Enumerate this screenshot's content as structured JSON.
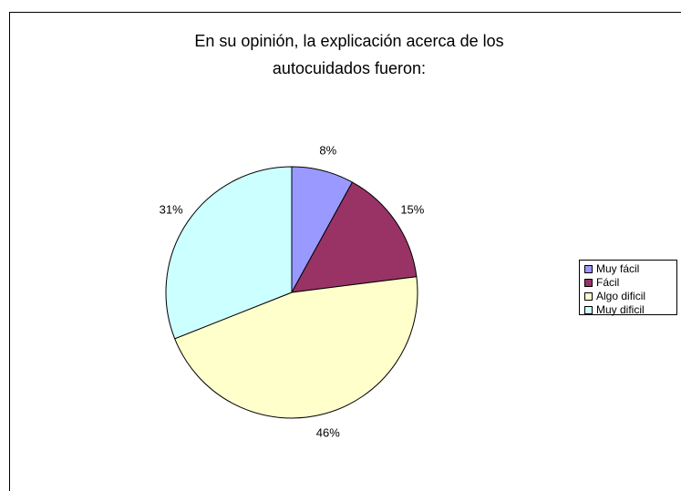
{
  "chart_data": {
    "type": "pie",
    "title": "En su opinión, la explicación acerca de los\nautocuidados fueron:",
    "categories": [
      "Muy fácil",
      "Fácil",
      "Algo dificil",
      "Muy dificil"
    ],
    "values": [
      8,
      15,
      46,
      31
    ],
    "value_labels": [
      "8%",
      "15%",
      "46%",
      "31%"
    ],
    "colors": [
      "#9999ff",
      "#993366",
      "#ffffcc",
      "#ccffff"
    ],
    "legend": "right"
  }
}
